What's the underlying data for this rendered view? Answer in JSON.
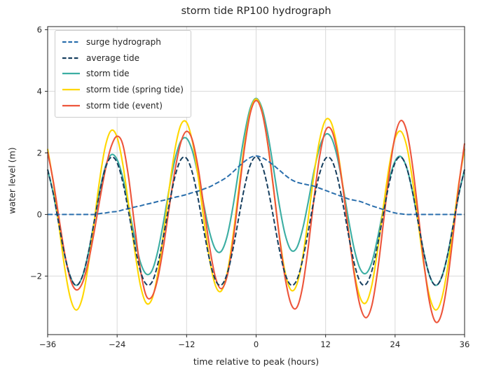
{
  "chart_data": {
    "type": "line",
    "title": "storm tide RP100 hydrograph",
    "xlabel": "time relative to peak (hours)",
    "ylabel": "water level (m)",
    "xlim": [
      -36,
      36
    ],
    "ylim": [
      -3.9,
      6.1
    ],
    "xticks": [
      -36,
      -24,
      -12,
      0,
      12,
      24,
      36
    ],
    "yticks": [
      -2,
      0,
      2,
      4,
      6
    ],
    "grid": true,
    "grid_color": "#d9d9d9",
    "axis_color": "#262626",
    "legend_position": "upper left",
    "x": [
      -36,
      -35,
      -34,
      -33,
      -32,
      -31,
      -30,
      -29,
      -28,
      -27,
      -26,
      -25,
      -24,
      -23,
      -22,
      -21,
      -20,
      -19,
      -18,
      -17,
      -16,
      -15,
      -14,
      -13,
      -12,
      -11,
      -10,
      -9,
      -8,
      -7,
      -6,
      -5,
      -4,
      -3,
      -2,
      -1,
      0,
      1,
      2,
      3,
      4,
      5,
      6,
      7,
      8,
      9,
      10,
      11,
      12,
      13,
      14,
      15,
      16,
      17,
      18,
      19,
      20,
      21,
      22,
      23,
      24,
      25,
      26,
      27,
      28,
      29,
      30,
      31,
      32,
      33,
      34,
      35,
      36
    ],
    "series": [
      {
        "name": "surge hydrograph",
        "color": "#2a6fad",
        "dash": true,
        "values": [
          0,
          0,
          0,
          0,
          0,
          0,
          0,
          0,
          0,
          0.03,
          0.05,
          0.08,
          0.1,
          0.15,
          0.19,
          0.24,
          0.28,
          0.33,
          0.37,
          0.42,
          0.46,
          0.51,
          0.56,
          0.6,
          0.65,
          0.71,
          0.76,
          0.83,
          0.9,
          1,
          1.1,
          1.22,
          1.38,
          1.56,
          1.72,
          1.85,
          1.9,
          1.85,
          1.74,
          1.6,
          1.44,
          1.28,
          1.14,
          1.05,
          1,
          0.96,
          0.92,
          0.85,
          0.78,
          0.71,
          0.64,
          0.57,
          0.5,
          0.46,
          0.42,
          0.35,
          0.28,
          0.22,
          0.16,
          0.1,
          0.05,
          0.02,
          0,
          0,
          0,
          0,
          0,
          0,
          0,
          0,
          0,
          0,
          0
        ]
      },
      {
        "name": "average tide",
        "color": "#173f5f",
        "dash": true,
        "values": [
          1.46,
          0.65,
          -0.38,
          -1.37,
          -2.06,
          -2.3,
          -2.01,
          -1.28,
          -0.27,
          0.74,
          1.52,
          1.86,
          1.68,
          1.03,
          0.06,
          -0.97,
          -1.82,
          -2.26,
          -2.2,
          -1.63,
          -0.71,
          0.33,
          1.24,
          1.78,
          1.82,
          1.35,
          0.49,
          -0.55,
          -1.5,
          -2.14,
          -2.29,
          -1.92,
          -1.13,
          -0.1,
          0.89,
          1.61,
          1.87,
          1.61,
          0.89,
          -0.1,
          -1.13,
          -1.92,
          -2.29,
          -2.14,
          -1.5,
          -0.55,
          0.49,
          1.35,
          1.82,
          1.78,
          1.24,
          0.33,
          -0.71,
          -1.63,
          -2.2,
          -2.26,
          -1.82,
          -0.97,
          0.06,
          1.03,
          1.68,
          1.86,
          1.52,
          0.74,
          -0.27,
          -1.28,
          -2.01,
          -2.3,
          -2.06,
          -1.37,
          -0.38,
          0.65,
          1.46
        ]
      },
      {
        "name": "storm tide",
        "color": "#3caea3",
        "dash": false,
        "values": [
          1.46,
          0.65,
          -0.38,
          -1.37,
          -2.06,
          -2.3,
          -2.01,
          -1.28,
          -0.27,
          0.77,
          1.57,
          1.94,
          1.78,
          1.18,
          0.25,
          -0.73,
          -1.54,
          -1.93,
          -1.83,
          -1.21,
          -0.25,
          0.84,
          1.8,
          2.38,
          2.47,
          2.06,
          1.25,
          0.28,
          -0.6,
          -1.14,
          -1.19,
          -0.7,
          0.25,
          1.46,
          2.61,
          3.46,
          3.77,
          3.46,
          2.63,
          1.5,
          0.31,
          -0.64,
          -1.15,
          -1.09,
          -0.5,
          0.41,
          1.41,
          2.2,
          2.6,
          2.49,
          1.88,
          0.9,
          -0.21,
          -1.17,
          -1.78,
          -1.91,
          -1.54,
          -0.75,
          0.22,
          1.13,
          1.73,
          1.88,
          1.52,
          0.74,
          -0.27,
          -1.28,
          -2.01,
          -2.3,
          -2.06,
          -1.37,
          -0.38,
          0.65,
          1.46
        ]
      },
      {
        "name": "storm tide (spring tide)",
        "color": "#ffd700",
        "dash": false,
        "values": [
          2.13,
          1,
          -0.43,
          -1.8,
          -2.77,
          -3.1,
          -2.7,
          -1.68,
          -0.28,
          1.15,
          2.24,
          2.73,
          2.5,
          1.61,
          0.29,
          -1.12,
          -2.28,
          -2.87,
          -2.75,
          -1.94,
          -0.64,
          0.84,
          2.13,
          2.91,
          2.99,
          2.37,
          1.21,
          -0.2,
          -1.49,
          -2.32,
          -2.48,
          -1.9,
          -0.71,
          0.82,
          2.29,
          3.36,
          3.75,
          3.36,
          2.3,
          0.84,
          -0.67,
          -1.87,
          -2.45,
          -2.29,
          -1.44,
          -0.13,
          1.3,
          2.45,
          3.07,
          2.97,
          2.18,
          0.88,
          -0.61,
          -1.92,
          -2.72,
          -2.86,
          -2.28,
          -1.13,
          0.28,
          1.59,
          2.47,
          2.7,
          2.22,
          1.13,
          -0.28,
          -1.68,
          -2.7,
          -3.1,
          -2.77,
          -1.8,
          -0.43,
          1,
          2.13
        ]
      },
      {
        "name": "storm tide (event)",
        "color": "#ed553b",
        "dash": false,
        "values": [
          2.03,
          1.04,
          -0.17,
          -1.33,
          -2.15,
          -2.45,
          -2.22,
          -1.56,
          -0.6,
          0.48,
          1.48,
          2.22,
          2.54,
          2.26,
          1.18,
          -0.34,
          -1.77,
          -2.63,
          -2.67,
          -2.09,
          -1.04,
          0.24,
          1.45,
          2.34,
          2.7,
          2.41,
          1.5,
          0.21,
          -1.09,
          -2.06,
          -2.41,
          -2,
          -0.88,
          0.65,
          2.17,
          3.29,
          3.7,
          3.33,
          2.32,
          0.87,
          -0.7,
          -2.05,
          -2.89,
          -3.03,
          -2.37,
          -1.06,
          0.52,
          1.92,
          2.73,
          2.75,
          2.06,
          0.84,
          -0.63,
          -2.01,
          -3,
          -3.35,
          -2.94,
          -1.8,
          -0.23,
          1.35,
          2.55,
          3.05,
          2.7,
          1.6,
          0.02,
          -1.62,
          -2.9,
          -3.49,
          -3.24,
          -2.23,
          -0.71,
          0.94,
          2.31
        ]
      }
    ]
  }
}
